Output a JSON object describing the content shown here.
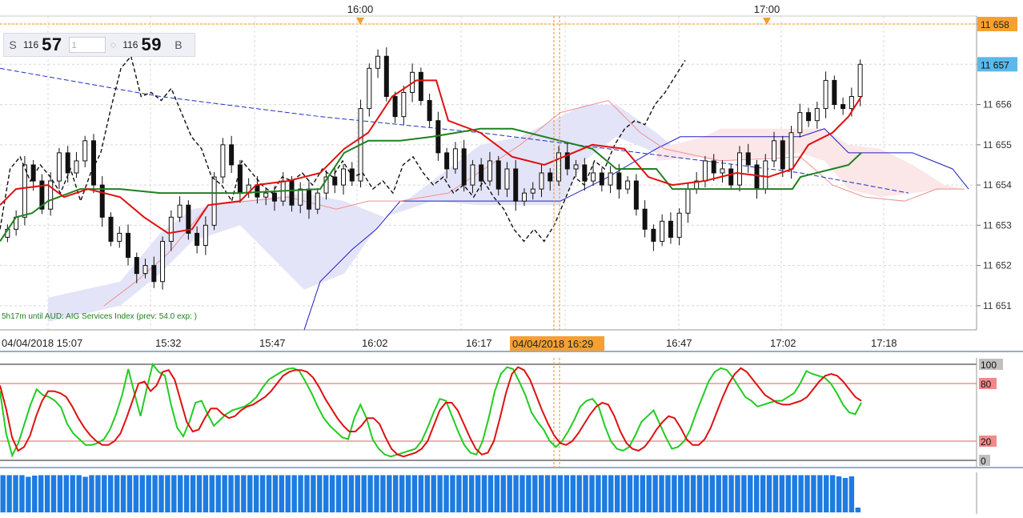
{
  "chart_data": [
    {
      "type": "candlestick",
      "title": "",
      "xlabel": "",
      "ylabel": "",
      "ylim": [
        11650.4,
        11658.2
      ],
      "y_ticks": [
        "11 658",
        "11 657",
        "11 656",
        "11 655",
        "11 654",
        "11 653",
        "11 652",
        "11 651"
      ],
      "x_ticks": [
        "04/04/2018 15:07",
        "15:32",
        "15:47",
        "16:02",
        "16:17",
        "16:47",
        "17:02",
        "17:18"
      ],
      "top_time_markers": [
        "16:00",
        "17:00"
      ],
      "crosshair": {
        "price_label": "11 658",
        "time_label": "04/04/2018 16:29"
      },
      "last_price_label": "11 657",
      "ticker_text": "5h17m until AUD: AIG Services Index (prev: 54.0 exp: )",
      "overlays": [
        {
          "kind": "kijun-sen",
          "color": "#208020"
        },
        {
          "kind": "tenkan-sen",
          "color": "#e01010"
        },
        {
          "kind": "chikou-span",
          "color": "#000000",
          "style": "dashed"
        },
        {
          "kind": "moving-average",
          "color": "#2030c0",
          "style": "dashed"
        },
        {
          "kind": "senkou-cloud-bullish",
          "color": "#e4e4f8"
        },
        {
          "kind": "senkou-cloud-bearish",
          "color": "#fbe6e8"
        }
      ]
    },
    {
      "type": "line",
      "indicator": "stochastic",
      "ylim": [
        0,
        100
      ],
      "levels": [
        "100",
        "80",
        "20",
        "0"
      ],
      "series": [
        {
          "color": "#22cc22",
          "values": [
            72,
            28,
            5,
            18,
            38,
            58,
            74,
            68,
            66,
            62,
            55,
            38,
            28,
            22,
            16,
            16,
            18,
            22,
            32,
            48,
            68,
            95,
            70,
            46,
            74,
            100,
            92,
            88,
            58,
            34,
            25,
            40,
            60,
            62,
            48,
            36,
            42,
            48,
            52,
            54,
            56,
            60,
            66,
            76,
            84,
            88,
            92,
            95,
            96,
            93,
            82,
            70,
            56,
            44,
            36,
            30,
            24,
            22,
            44,
            58,
            44,
            22,
            12,
            6,
            4,
            6,
            8,
            10,
            12,
            20,
            34,
            50,
            64,
            62,
            46,
            30,
            16,
            8,
            6,
            20,
            44,
            72,
            90,
            97,
            95,
            82,
            68,
            50,
            40,
            32,
            20,
            14,
            20,
            30,
            42,
            56,
            62,
            64,
            56,
            36,
            20,
            12,
            10,
            14,
            26,
            40,
            46,
            52,
            38,
            24,
            12,
            14,
            20,
            32,
            50,
            66,
            82,
            92,
            96,
            94,
            86,
            76,
            66,
            62,
            56,
            58,
            60,
            62,
            62,
            66,
            70,
            80,
            93,
            90,
            88,
            86,
            80,
            70,
            58,
            50,
            48,
            60
          ]
        },
        {
          "color": "#dd1111",
          "values": [
            78,
            54,
            24,
            10,
            14,
            26,
            46,
            62,
            72,
            72,
            70,
            66,
            56,
            44,
            34,
            26,
            20,
            16,
            16,
            20,
            28,
            44,
            62,
            80,
            82,
            72,
            78,
            92,
            94,
            84,
            62,
            40,
            30,
            32,
            44,
            54,
            54,
            48,
            44,
            46,
            52,
            56,
            58,
            62,
            66,
            72,
            80,
            88,
            92,
            94,
            94,
            92,
            86,
            76,
            64,
            54,
            44,
            36,
            30,
            30,
            36,
            44,
            44,
            38,
            24,
            12,
            6,
            4,
            6,
            8,
            12,
            20,
            36,
            52,
            60,
            60,
            52,
            38,
            24,
            12,
            6,
            8,
            20,
            44,
            70,
            90,
            97,
            94,
            84,
            68,
            52,
            38,
            26,
            18,
            16,
            20,
            28,
            38,
            48,
            56,
            60,
            58,
            46,
            30,
            18,
            12,
            10,
            14,
            22,
            32,
            40,
            46,
            44,
            34,
            22,
            16,
            16,
            22,
            34,
            50,
            66,
            80,
            90,
            96,
            92,
            84,
            76,
            68,
            64,
            60,
            58,
            58,
            60,
            62,
            66,
            74,
            82,
            88,
            90,
            88,
            82,
            74,
            66,
            62
          ]
        }
      ]
    },
    {
      "type": "bar",
      "indicator": "volume",
      "values": [
        93,
        93,
        93,
        93,
        89,
        92,
        93,
        93,
        93,
        93,
        93,
        93,
        93,
        89,
        93,
        93,
        93,
        93,
        93,
        93,
        93,
        93,
        93,
        93,
        93,
        93,
        93,
        93,
        93,
        93,
        93,
        93,
        93,
        93,
        93,
        93,
        93,
        93,
        93,
        93,
        93,
        93,
        93,
        93,
        93,
        93,
        93,
        93,
        93,
        93,
        93,
        93,
        93,
        93,
        93,
        93,
        93,
        93,
        93,
        93,
        93,
        93,
        93,
        93,
        93,
        93,
        93,
        93,
        93,
        93,
        93,
        93,
        93,
        93,
        93,
        93,
        93,
        93,
        93,
        93,
        93,
        93,
        93,
        93,
        93,
        93,
        93,
        93,
        93,
        93,
        93,
        93,
        93,
        93,
        93,
        93,
        93,
        93,
        93,
        93,
        93,
        93,
        93,
        93,
        93,
        93,
        93,
        93,
        93,
        93,
        93,
        93,
        93,
        93,
        93,
        93,
        93,
        93,
        93,
        93,
        93,
        93,
        93,
        93,
        93,
        93,
        93,
        93,
        93,
        93,
        93,
        93,
        90,
        86,
        90,
        12
      ]
    }
  ],
  "price_widget": {
    "sell_side": "S",
    "sell_small": "116",
    "sell_big": "57",
    "quantity": "1",
    "buy_small": "116",
    "buy_big": "59",
    "buy_side": "B"
  }
}
